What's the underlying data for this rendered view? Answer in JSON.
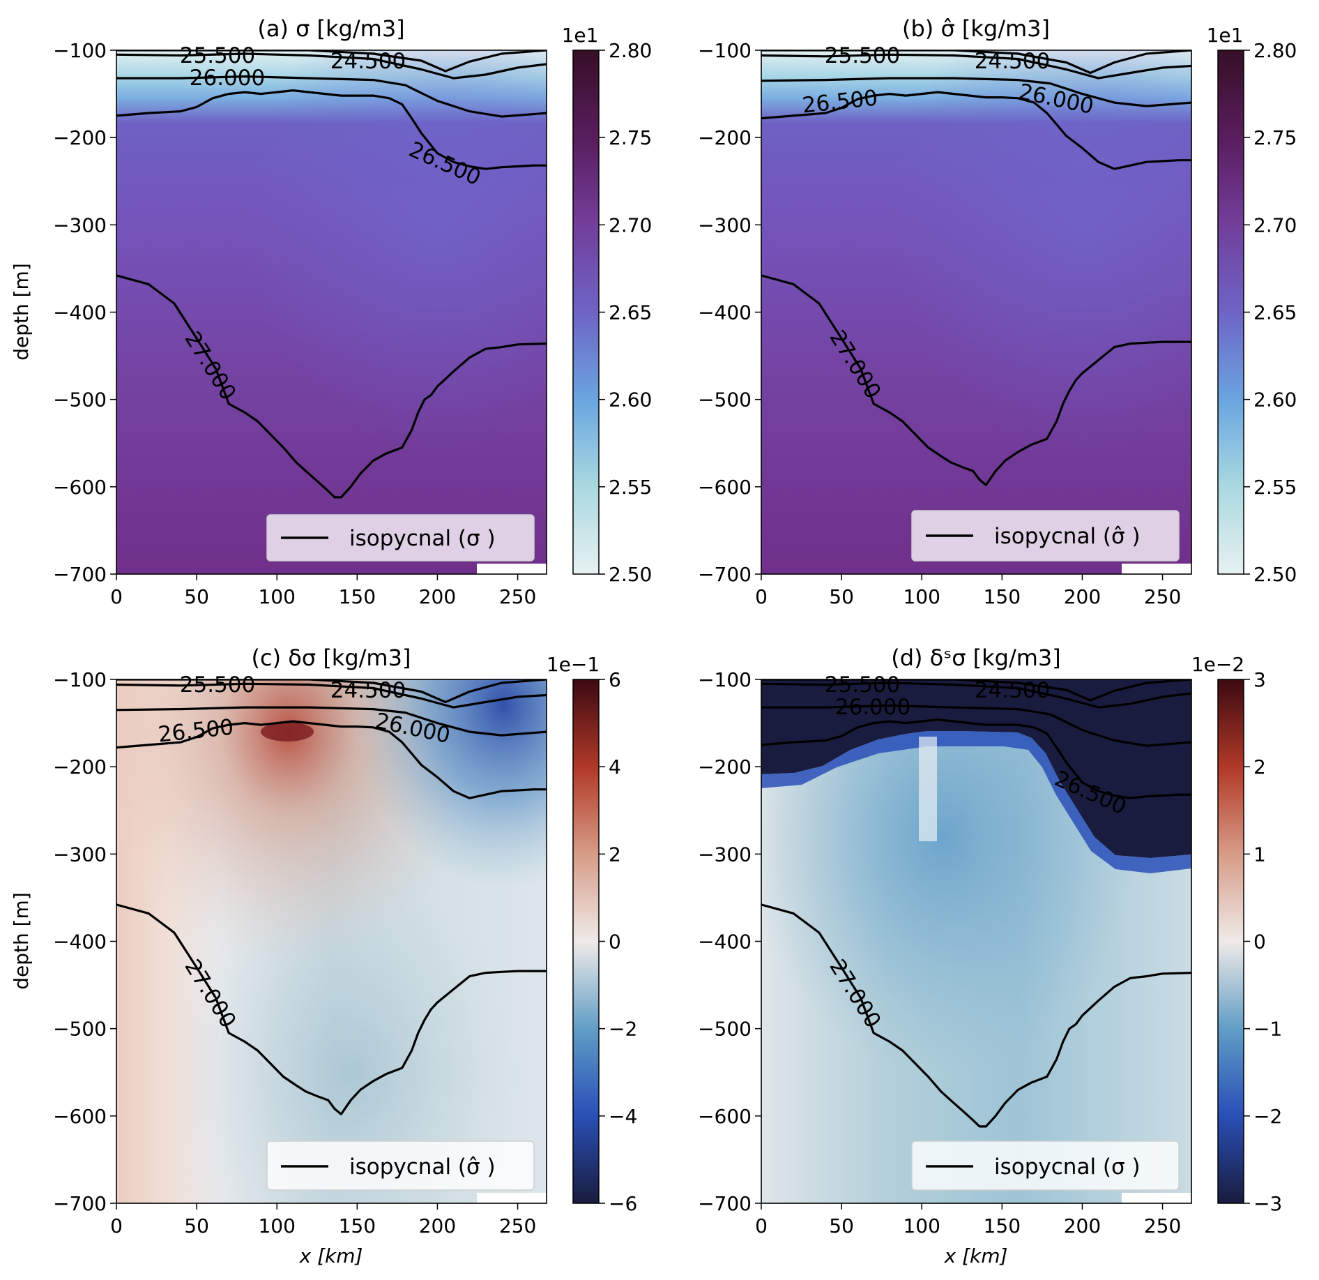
{
  "figure": {
    "ylabel": "depth [m]",
    "xlabel": "x [km]",
    "legend_line_name": "isopycnal",
    "unit_text": "[kg/m3]"
  },
  "chart_data": [
    {
      "type": "heatmap",
      "panel": "a",
      "title": "(a) σ   [kg/m3]",
      "xlabel": "",
      "ylabel": "depth [m]",
      "xlim": [
        0,
        268
      ],
      "ylim": [
        -700,
        -100
      ],
      "xticks": [
        "0",
        "50",
        "100",
        "150",
        "200",
        "250"
      ],
      "yticks": [
        "−100",
        "−200",
        "−300",
        "−400",
        "−500",
        "−600",
        "−700"
      ],
      "colorbar": {
        "colormap": "dense",
        "range": [
          2.5,
          2.8
        ],
        "offset": "1e1",
        "ticks": [
          "2.50",
          "2.55",
          "2.60",
          "2.65",
          "2.70",
          "2.75",
          "2.80"
        ],
        "colors": [
          "#e6f1f1",
          "#a9d8e0",
          "#6aa6e0",
          "#6e64c6",
          "#723e9a",
          "#5a1e5e",
          "#360f26"
        ]
      },
      "legend": {
        "label": "isopycnal (σ )",
        "location": "lower right"
      },
      "contour_labels": [
        "25.500",
        "24.500",
        "26.000",
        "26.500",
        "27.000"
      ],
      "isopycnals": [
        {
          "level": "27.000",
          "x": [
            0,
            20,
            36,
            50,
            62,
            70,
            80,
            88,
            96,
            104,
            112,
            118,
            126,
            132,
            136,
            140,
            146,
            152,
            160,
            168,
            178,
            184,
            188,
            192,
            196,
            200,
            210,
            220,
            230,
            240,
            250,
            268
          ],
          "depth": [
            -358,
            -368,
            -390,
            -430,
            -465,
            -505,
            -515,
            -525,
            -540,
            -555,
            -572,
            -582,
            -595,
            -605,
            -612,
            -612,
            -600,
            -585,
            -570,
            -562,
            -555,
            -535,
            -515,
            -500,
            -495,
            -485,
            -468,
            -452,
            -442,
            -440,
            -437,
            -436
          ]
        },
        {
          "level": "26.500",
          "x": [
            0,
            20,
            40,
            50,
            60,
            70,
            80,
            90,
            100,
            110,
            120,
            130,
            140,
            150,
            160,
            170,
            178,
            184,
            190,
            200,
            210,
            220,
            230,
            240,
            250,
            260,
            268
          ],
          "depth": [
            -175,
            -172,
            -170,
            -165,
            -155,
            -150,
            -148,
            -150,
            -148,
            -146,
            -148,
            -150,
            -152,
            -152,
            -152,
            -155,
            -162,
            -178,
            -195,
            -218,
            -228,
            -233,
            -236,
            -234,
            -233,
            -232,
            -232
          ]
        },
        {
          "level": "26.000",
          "x": [
            0,
            40,
            80,
            120,
            160,
            180,
            200,
            220,
            240,
            268
          ],
          "depth": [
            -132,
            -132,
            -130,
            -132,
            -134,
            -140,
            -158,
            -170,
            -176,
            -172
          ]
        },
        {
          "level": "25.500",
          "x": [
            0,
            40,
            80,
            120,
            160,
            190,
            210,
            230,
            250,
            268
          ],
          "depth": [
            -105,
            -106,
            -104,
            -106,
            -110,
            -122,
            -132,
            -128,
            -120,
            -116
          ]
        },
        {
          "level": "24.500",
          "x": [
            0,
            40,
            80,
            120,
            160,
            190,
            205,
            220,
            240,
            268
          ],
          "depth": [
            -100,
            -100,
            -100,
            -100,
            -104,
            -112,
            -124,
            -113,
            -104,
            -100
          ]
        }
      ]
    },
    {
      "type": "heatmap",
      "panel": "b",
      "title": "(b) σ̂   [kg/m3]",
      "xlabel": "",
      "ylabel": "",
      "xlim": [
        0,
        268
      ],
      "ylim": [
        -700,
        -100
      ],
      "xticks": [
        "0",
        "50",
        "100",
        "150",
        "200",
        "250"
      ],
      "yticks": [
        "−100",
        "−200",
        "−300",
        "−400",
        "−500",
        "−600",
        "−700"
      ],
      "colorbar": {
        "colormap": "dense",
        "range": [
          2.5,
          2.8
        ],
        "offset": "1e1",
        "ticks": [
          "2.50",
          "2.55",
          "2.60",
          "2.65",
          "2.70",
          "2.75",
          "2.80"
        ],
        "colors": [
          "#e6f1f1",
          "#a9d8e0",
          "#6aa6e0",
          "#6e64c6",
          "#723e9a",
          "#5a1e5e",
          "#360f26"
        ]
      },
      "legend": {
        "label": "isopycnal (σ̂ )",
        "location": "lower right"
      },
      "contour_labels": [
        "25.500",
        "24.500",
        "26.500",
        "26.000",
        "27.000"
      ],
      "isopycnals": [
        {
          "level": "27.000",
          "x": [
            0,
            20,
            36,
            50,
            62,
            70,
            80,
            88,
            96,
            104,
            112,
            118,
            126,
            132,
            136,
            140,
            146,
            152,
            160,
            168,
            178,
            184,
            188,
            192,
            196,
            200,
            210,
            220,
            230,
            240,
            250,
            268
          ],
          "depth": [
            -358,
            -368,
            -390,
            -430,
            -465,
            -505,
            -515,
            -525,
            -540,
            -555,
            -565,
            -572,
            -578,
            -582,
            -592,
            -598,
            -582,
            -570,
            -560,
            -552,
            -545,
            -525,
            -505,
            -490,
            -478,
            -470,
            -455,
            -440,
            -436,
            -435,
            -434,
            -434
          ]
        },
        {
          "level": "26.500",
          "x": [
            0,
            20,
            40,
            50,
            60,
            70,
            80,
            90,
            100,
            110,
            120,
            130,
            140,
            150,
            160,
            170,
            178,
            184,
            190,
            200,
            210,
            220,
            230,
            240,
            250,
            260,
            268
          ],
          "depth": [
            -178,
            -175,
            -172,
            -166,
            -156,
            -152,
            -150,
            -152,
            -150,
            -148,
            -150,
            -152,
            -154,
            -154,
            -155,
            -160,
            -172,
            -185,
            -198,
            -212,
            -228,
            -236,
            -232,
            -228,
            -227,
            -226,
            -226
          ]
        },
        {
          "level": "26.000",
          "x": [
            0,
            40,
            80,
            120,
            160,
            180,
            200,
            220,
            240,
            268
          ],
          "depth": [
            -135,
            -134,
            -132,
            -132,
            -134,
            -138,
            -150,
            -160,
            -164,
            -160
          ]
        },
        {
          "level": "25.500",
          "x": [
            0,
            40,
            80,
            120,
            160,
            190,
            210,
            230,
            250,
            268
          ],
          "depth": [
            -106,
            -107,
            -105,
            -106,
            -110,
            -122,
            -132,
            -126,
            -120,
            -118
          ]
        },
        {
          "level": "24.500",
          "x": [
            0,
            40,
            80,
            120,
            160,
            190,
            205,
            220,
            240,
            268
          ],
          "depth": [
            -100,
            -100,
            -100,
            -100,
            -104,
            -114,
            -126,
            -114,
            -104,
            -100
          ]
        }
      ]
    },
    {
      "type": "heatmap",
      "panel": "c",
      "title": "(c) δσ   [kg/m3]",
      "xlabel": "x [km]",
      "ylabel": "depth [m]",
      "xlim": [
        0,
        268
      ],
      "ylim": [
        -700,
        -100
      ],
      "xticks": [
        "0",
        "50",
        "100",
        "150",
        "200",
        "250"
      ],
      "yticks": [
        "−100",
        "−200",
        "−300",
        "−400",
        "−500",
        "−600",
        "−700"
      ],
      "colorbar": {
        "colormap": "balance",
        "range": [
          -6,
          6
        ],
        "offset": "1e−1",
        "ticks": [
          "−6",
          "−4",
          "−2",
          "0",
          "2",
          "4",
          "6"
        ],
        "colors": [
          "#191c3e",
          "#2a50b8",
          "#5f9cc6",
          "#efeae8",
          "#d69a85",
          "#b23a28",
          "#3c0912"
        ]
      },
      "legend": {
        "label": "isopycnal (σ̂ )",
        "location": "lower right"
      },
      "contour_labels": [
        "25.500",
        "24.500",
        "26.500",
        "26.000",
        "27.000"
      ],
      "isopycnals": [
        {
          "level": "27.000",
          "x": [
            0,
            20,
            36,
            50,
            62,
            70,
            80,
            88,
            96,
            104,
            112,
            118,
            126,
            132,
            136,
            140,
            146,
            152,
            160,
            168,
            178,
            184,
            188,
            192,
            196,
            200,
            210,
            220,
            230,
            240,
            250,
            268
          ],
          "depth": [
            -358,
            -368,
            -390,
            -430,
            -465,
            -505,
            -515,
            -525,
            -540,
            -555,
            -565,
            -572,
            -578,
            -582,
            -592,
            -598,
            -582,
            -570,
            -560,
            -552,
            -545,
            -525,
            -505,
            -490,
            -478,
            -470,
            -455,
            -440,
            -436,
            -435,
            -434,
            -434
          ]
        },
        {
          "level": "26.500",
          "x": [
            0,
            20,
            40,
            50,
            60,
            70,
            80,
            90,
            100,
            110,
            120,
            130,
            140,
            150,
            160,
            170,
            178,
            184,
            190,
            200,
            210,
            220,
            230,
            240,
            250,
            260,
            268
          ],
          "depth": [
            -178,
            -175,
            -172,
            -166,
            -156,
            -152,
            -150,
            -152,
            -150,
            -148,
            -150,
            -152,
            -154,
            -154,
            -155,
            -160,
            -172,
            -185,
            -198,
            -212,
            -228,
            -236,
            -232,
            -228,
            -227,
            -226,
            -226
          ]
        },
        {
          "level": "26.000",
          "x": [
            0,
            40,
            80,
            120,
            160,
            180,
            200,
            220,
            240,
            268
          ],
          "depth": [
            -135,
            -134,
            -132,
            -132,
            -134,
            -138,
            -150,
            -160,
            -164,
            -160
          ]
        },
        {
          "level": "25.500",
          "x": [
            0,
            40,
            80,
            120,
            160,
            190,
            210,
            230,
            250,
            268
          ],
          "depth": [
            -106,
            -107,
            -105,
            -106,
            -110,
            -122,
            -132,
            -126,
            -120,
            -118
          ]
        },
        {
          "level": "24.500",
          "x": [
            0,
            40,
            80,
            120,
            160,
            190,
            205,
            220,
            240,
            268
          ],
          "depth": [
            -100,
            -100,
            -100,
            -100,
            -104,
            -114,
            -126,
            -114,
            -104,
            -100
          ]
        }
      ]
    },
    {
      "type": "heatmap",
      "panel": "d",
      "title": "(d) δˢσ   [kg/m3]",
      "xlabel": "x [km]",
      "ylabel": "",
      "xlim": [
        0,
        268
      ],
      "ylim": [
        -700,
        -100
      ],
      "xticks": [
        "0",
        "50",
        "100",
        "150",
        "200",
        "250"
      ],
      "yticks": [
        "−100",
        "−200",
        "−300",
        "−400",
        "−500",
        "−600",
        "−700"
      ],
      "colorbar": {
        "colormap": "balance",
        "range": [
          -3,
          3
        ],
        "offset": "1e−2",
        "ticks": [
          "−3",
          "−2",
          "−1",
          "0",
          "1",
          "2",
          "3"
        ],
        "colors": [
          "#191c3e",
          "#2a50b8",
          "#5f9cc6",
          "#efeae8",
          "#d69a85",
          "#b23a28",
          "#3c0912"
        ]
      },
      "legend": {
        "label": "isopycnal (σ )",
        "location": "lower right"
      },
      "contour_labels": [
        "25.500",
        "24.500",
        "26.000",
        "26.500",
        "27.000"
      ],
      "isopycnals": [
        {
          "level": "27.000",
          "x": [
            0,
            20,
            36,
            50,
            62,
            70,
            80,
            88,
            96,
            104,
            112,
            118,
            126,
            132,
            136,
            140,
            146,
            152,
            160,
            168,
            178,
            184,
            188,
            192,
            196,
            200,
            210,
            220,
            230,
            240,
            250,
            268
          ],
          "depth": [
            -358,
            -368,
            -390,
            -430,
            -465,
            -505,
            -515,
            -525,
            -540,
            -555,
            -572,
            -582,
            -595,
            -605,
            -612,
            -612,
            -600,
            -585,
            -570,
            -562,
            -555,
            -535,
            -515,
            -500,
            -495,
            -485,
            -468,
            -452,
            -442,
            -440,
            -437,
            -436
          ]
        },
        {
          "level": "26.500",
          "x": [
            0,
            20,
            40,
            50,
            60,
            70,
            80,
            90,
            100,
            110,
            120,
            130,
            140,
            150,
            160,
            170,
            178,
            184,
            190,
            200,
            210,
            220,
            230,
            240,
            250,
            260,
            268
          ],
          "depth": [
            -175,
            -172,
            -170,
            -165,
            -155,
            -150,
            -148,
            -150,
            -148,
            -146,
            -148,
            -150,
            -152,
            -152,
            -152,
            -155,
            -162,
            -178,
            -195,
            -218,
            -228,
            -233,
            -236,
            -234,
            -233,
            -232,
            -232
          ]
        },
        {
          "level": "26.000",
          "x": [
            0,
            40,
            80,
            120,
            160,
            180,
            200,
            220,
            240,
            268
          ],
          "depth": [
            -132,
            -132,
            -130,
            -132,
            -134,
            -140,
            -158,
            -170,
            -176,
            -172
          ]
        },
        {
          "level": "25.500",
          "x": [
            0,
            40,
            80,
            120,
            160,
            190,
            210,
            230,
            250,
            268
          ],
          "depth": [
            -105,
            -106,
            -104,
            -106,
            -110,
            -122,
            -132,
            -128,
            -120,
            -116
          ]
        },
        {
          "level": "24.500",
          "x": [
            0,
            40,
            80,
            120,
            160,
            190,
            205,
            220,
            240,
            268
          ],
          "depth": [
            -100,
            -100,
            -100,
            -100,
            -104,
            -112,
            -124,
            -113,
            -104,
            -100
          ]
        }
      ]
    }
  ]
}
